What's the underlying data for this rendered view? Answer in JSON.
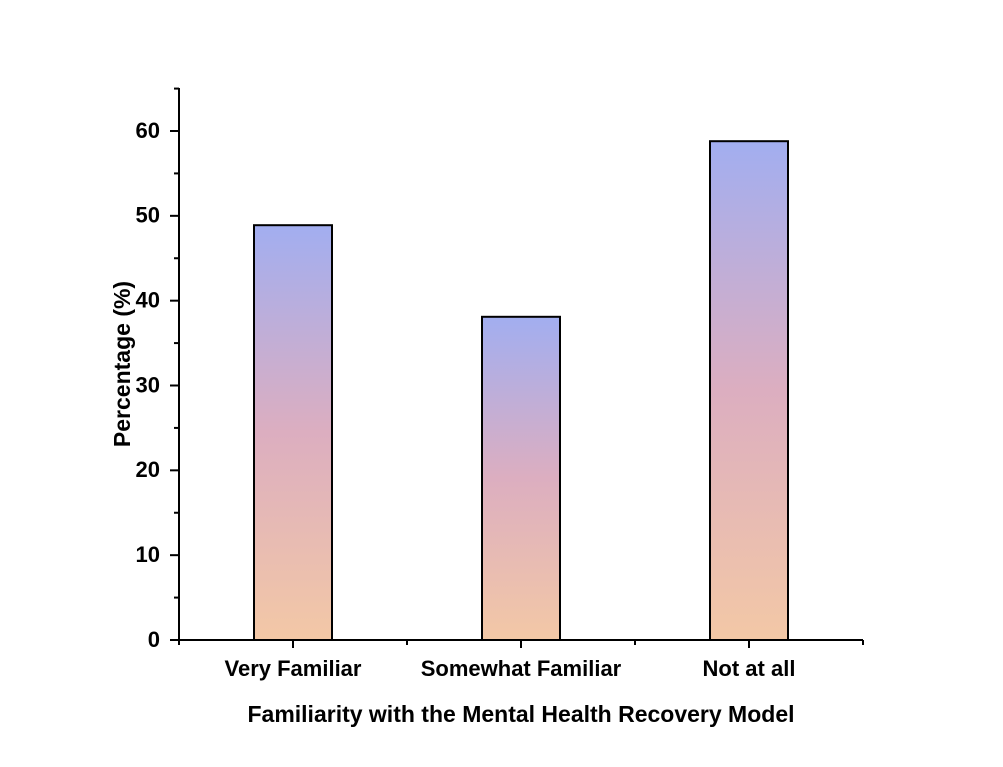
{
  "chart_data": {
    "type": "bar",
    "title": "",
    "categories": [
      "Very Familiar",
      "Somewhat Familiar",
      "Not at all"
    ],
    "values": [
      48.9,
      38.1,
      58.8
    ],
    "xlabel": "Familiarity with the Mental Health Recovery Model",
    "ylabel": "Percentage (%)",
    "ylim": [
      0,
      65
    ],
    "yticks": [
      0,
      10,
      20,
      30,
      40,
      50,
      60
    ],
    "ytick_labels": [
      "0",
      "10",
      "20",
      "30",
      "40",
      "50",
      "60"
    ],
    "grid": false,
    "legend": "none",
    "bar_gradient_top": "#a2aef0",
    "bar_gradient_mid": "#dcaec0",
    "bar_gradient_bottom": "#f3c8a6",
    "bar_outline": "#000000"
  }
}
